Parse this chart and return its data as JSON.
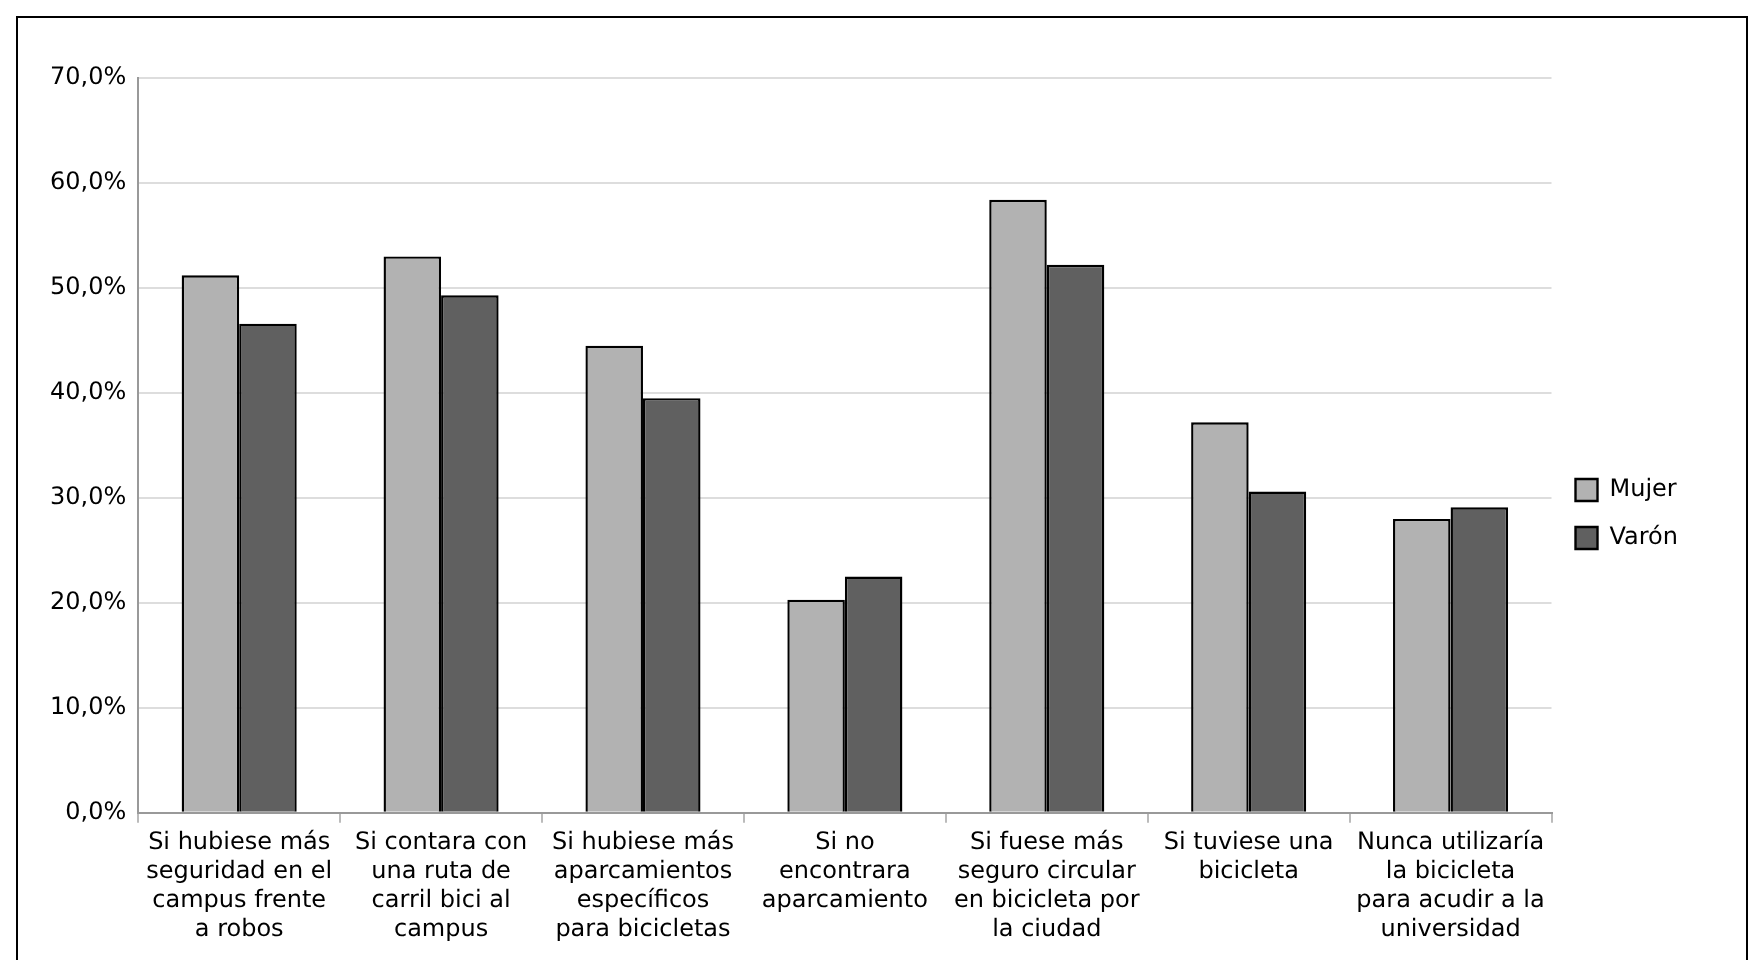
{
  "chart_data": {
    "type": "bar",
    "categories": [
      "Si hubiese más seguridad en el campus frente a robos",
      "Si contara con una ruta de carril bici al campus",
      "Si hubiese más aparcamientos específicos para bicicletas",
      "Si no encontrara aparcamiento",
      "Si fuese más seguro circular en bicicleta por la ciudad",
      "Si tuviese una bicicleta",
      "Nunca utilizaría la bicicleta para acudir a la universidad"
    ],
    "series": [
      {
        "name": "Mujer",
        "color": "#b2b2b2",
        "values": [
          51.2,
          53.0,
          44.5,
          20.3,
          58.4,
          37.2,
          28.0
        ]
      },
      {
        "name": "Varón",
        "color": "#606060",
        "values": [
          46.6,
          49.3,
          39.5,
          22.5,
          52.2,
          30.6,
          29.1
        ]
      }
    ],
    "ylim": [
      0,
      70
    ],
    "yticks": [
      {
        "value": 0,
        "label": "0,0%"
      },
      {
        "value": 10,
        "label": "10,0%"
      },
      {
        "value": 20,
        "label": "20,0%"
      },
      {
        "value": 30,
        "label": "30,0%"
      },
      {
        "value": 40,
        "label": "40,0%"
      },
      {
        "value": 50,
        "label": "50,0%"
      },
      {
        "value": 60,
        "label": "60,0%"
      },
      {
        "value": 70,
        "label": "70,0%"
      }
    ],
    "grid": "y",
    "legend": "right"
  }
}
